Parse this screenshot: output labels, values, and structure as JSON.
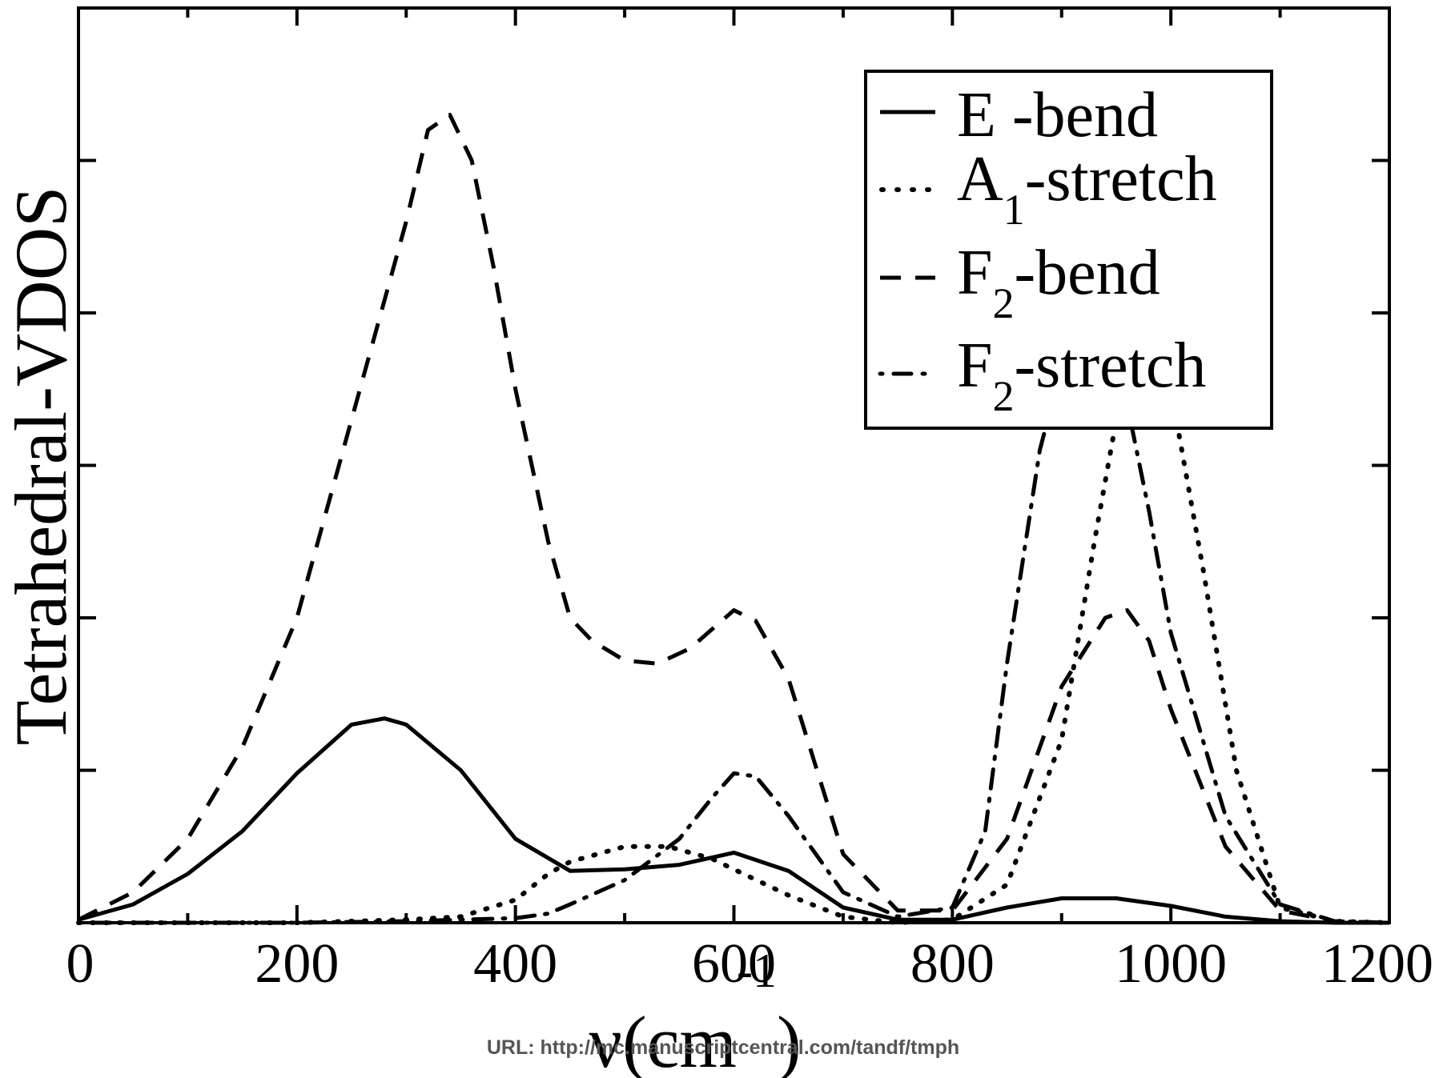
{
  "chart_data": {
    "type": "line",
    "ylabel": "Tetrahedral-VDOS",
    "xlabel_main": "ν(cm",
    "xlabel_sup": "-1",
    "xlabel_close": ")",
    "xlim": [
      0,
      1200
    ],
    "ylim": [
      0,
      6
    ],
    "x_ticks": [
      0,
      200,
      400,
      600,
      800,
      1000,
      1200
    ],
    "x_tick_labels": [
      "0",
      "200",
      "400",
      "600",
      "800",
      "1000",
      "1200"
    ],
    "y_tick_labels_shown": false,
    "grid": false,
    "legend_position": "top-right",
    "series": [
      {
        "name": "E -bend",
        "style": "solid",
        "x": [
          0,
          50,
          100,
          150,
          200,
          250,
          280,
          300,
          350,
          400,
          450,
          500,
          550,
          600,
          650,
          700,
          750,
          800,
          850,
          900,
          950,
          1000,
          1050,
          1100,
          1150,
          1200
        ],
        "y": [
          0.02,
          0.12,
          0.32,
          0.6,
          0.98,
          1.3,
          1.34,
          1.3,
          1.0,
          0.55,
          0.34,
          0.35,
          0.38,
          0.46,
          0.34,
          0.1,
          0.02,
          0.02,
          0.1,
          0.16,
          0.16,
          0.11,
          0.04,
          0.01,
          0.0,
          0.0
        ]
      },
      {
        "name_main": "A",
        "name_sub": "1",
        "name_rest": "-stretch",
        "style": "dotted",
        "x": [
          0,
          100,
          200,
          300,
          350,
          400,
          430,
          450,
          500,
          540,
          580,
          600,
          650,
          700,
          750,
          800,
          850,
          900,
          930,
          950,
          980,
          1000,
          1030,
          1060,
          1100,
          1150,
          1200
        ],
        "y": [
          0.0,
          0.0,
          0.0,
          0.02,
          0.04,
          0.15,
          0.32,
          0.4,
          0.5,
          0.5,
          0.42,
          0.35,
          0.18,
          0.04,
          0.0,
          0.02,
          0.25,
          1.2,
          2.5,
          3.3,
          4.0,
          3.5,
          2.3,
          1.0,
          0.1,
          0.01,
          0.0
        ]
      },
      {
        "name_main": "F",
        "name_sub": "2",
        "name_rest": "-bend",
        "style": "dashed",
        "x": [
          0,
          50,
          100,
          150,
          200,
          250,
          300,
          320,
          340,
          360,
          380,
          400,
          430,
          450,
          470,
          500,
          530,
          560,
          600,
          620,
          650,
          700,
          750,
          800,
          850,
          900,
          940,
          960,
          980,
          1000,
          1050,
          1100,
          1150,
          1200
        ],
        "y": [
          0.02,
          0.2,
          0.55,
          1.15,
          2.0,
          3.3,
          4.6,
          5.2,
          5.3,
          5.0,
          4.3,
          3.5,
          2.5,
          2.0,
          1.85,
          1.72,
          1.7,
          1.8,
          2.05,
          1.98,
          1.6,
          0.45,
          0.08,
          0.08,
          0.55,
          1.55,
          2.0,
          2.05,
          1.85,
          1.4,
          0.5,
          0.08,
          0.01,
          0.0
        ]
      },
      {
        "name_main": "F",
        "name_sub": "2",
        "name_rest": "-stretch",
        "style": "dash-dot",
        "x": [
          0,
          100,
          200,
          300,
          400,
          430,
          450,
          500,
          550,
          580,
          600,
          620,
          650,
          700,
          750,
          800,
          830,
          850,
          880,
          900,
          920,
          940,
          960,
          980,
          1000,
          1050,
          1100,
          1150,
          1200
        ],
        "y": [
          0.0,
          0.0,
          0.0,
          0.01,
          0.03,
          0.06,
          0.12,
          0.28,
          0.55,
          0.82,
          0.98,
          0.96,
          0.7,
          0.2,
          0.04,
          0.1,
          0.6,
          1.7,
          3.1,
          3.65,
          3.78,
          3.68,
          3.4,
          2.7,
          1.9,
          0.7,
          0.12,
          0.01,
          0.0
        ]
      }
    ]
  },
  "footer": {
    "url_text": "URL: http://mc.manuscriptcentral.com/tandf/tmph"
  }
}
